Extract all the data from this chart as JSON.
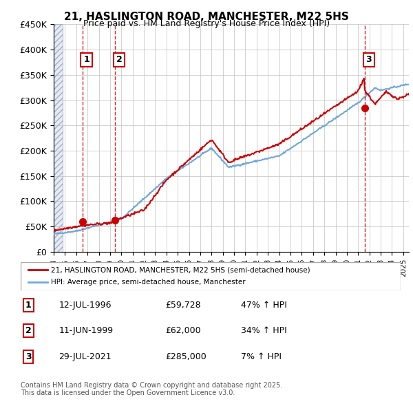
{
  "title": "21, HASLINGTON ROAD, MANCHESTER, M22 5HS",
  "subtitle": "Price paid vs. HM Land Registry's House Price Index (HPI)",
  "xlabel": "",
  "ylabel": "",
  "ylim": [
    0,
    450000
  ],
  "yticks": [
    0,
    50000,
    100000,
    150000,
    200000,
    250000,
    300000,
    350000,
    400000,
    450000
  ],
  "ytick_labels": [
    "£0",
    "£50K",
    "£100K",
    "£150K",
    "£200K",
    "£250K",
    "£300K",
    "£350K",
    "£400K",
    "£450K"
  ],
  "xlim_start": 1994.0,
  "xlim_end": 2025.5,
  "sale_dates": [
    1996.54,
    1999.44,
    2021.57
  ],
  "sale_prices": [
    59728,
    62000,
    285000
  ],
  "sale_labels": [
    "1",
    "2",
    "3"
  ],
  "hpi_color": "#6fa8dc",
  "price_color": "#cc0000",
  "sale_marker_color": "#cc0000",
  "dashed_line_color": "#cc0000",
  "background_color": "#ffffff",
  "plot_bg_color": "#ffffff",
  "grid_color": "#c0c0c0",
  "hatch_color": "#d0d8e8",
  "legend_label_red": "21, HASLINGTON ROAD, MANCHESTER, M22 5HS (semi-detached house)",
  "legend_label_blue": "HPI: Average price, semi-detached house, Manchester",
  "transactions": [
    {
      "label": "1",
      "date": "12-JUL-1996",
      "price": "£59,728",
      "hpi": "47% ↑ HPI"
    },
    {
      "label": "2",
      "date": "11-JUN-1999",
      "price": "£62,000",
      "hpi": "34% ↑ HPI"
    },
    {
      "label": "3",
      "date": "29-JUL-2021",
      "price": "£285,000",
      "hpi": "7% ↑ HPI"
    }
  ],
  "footnote": "Contains HM Land Registry data © Crown copyright and database right 2025.\nThis data is licensed under the Open Government Licence v3.0."
}
